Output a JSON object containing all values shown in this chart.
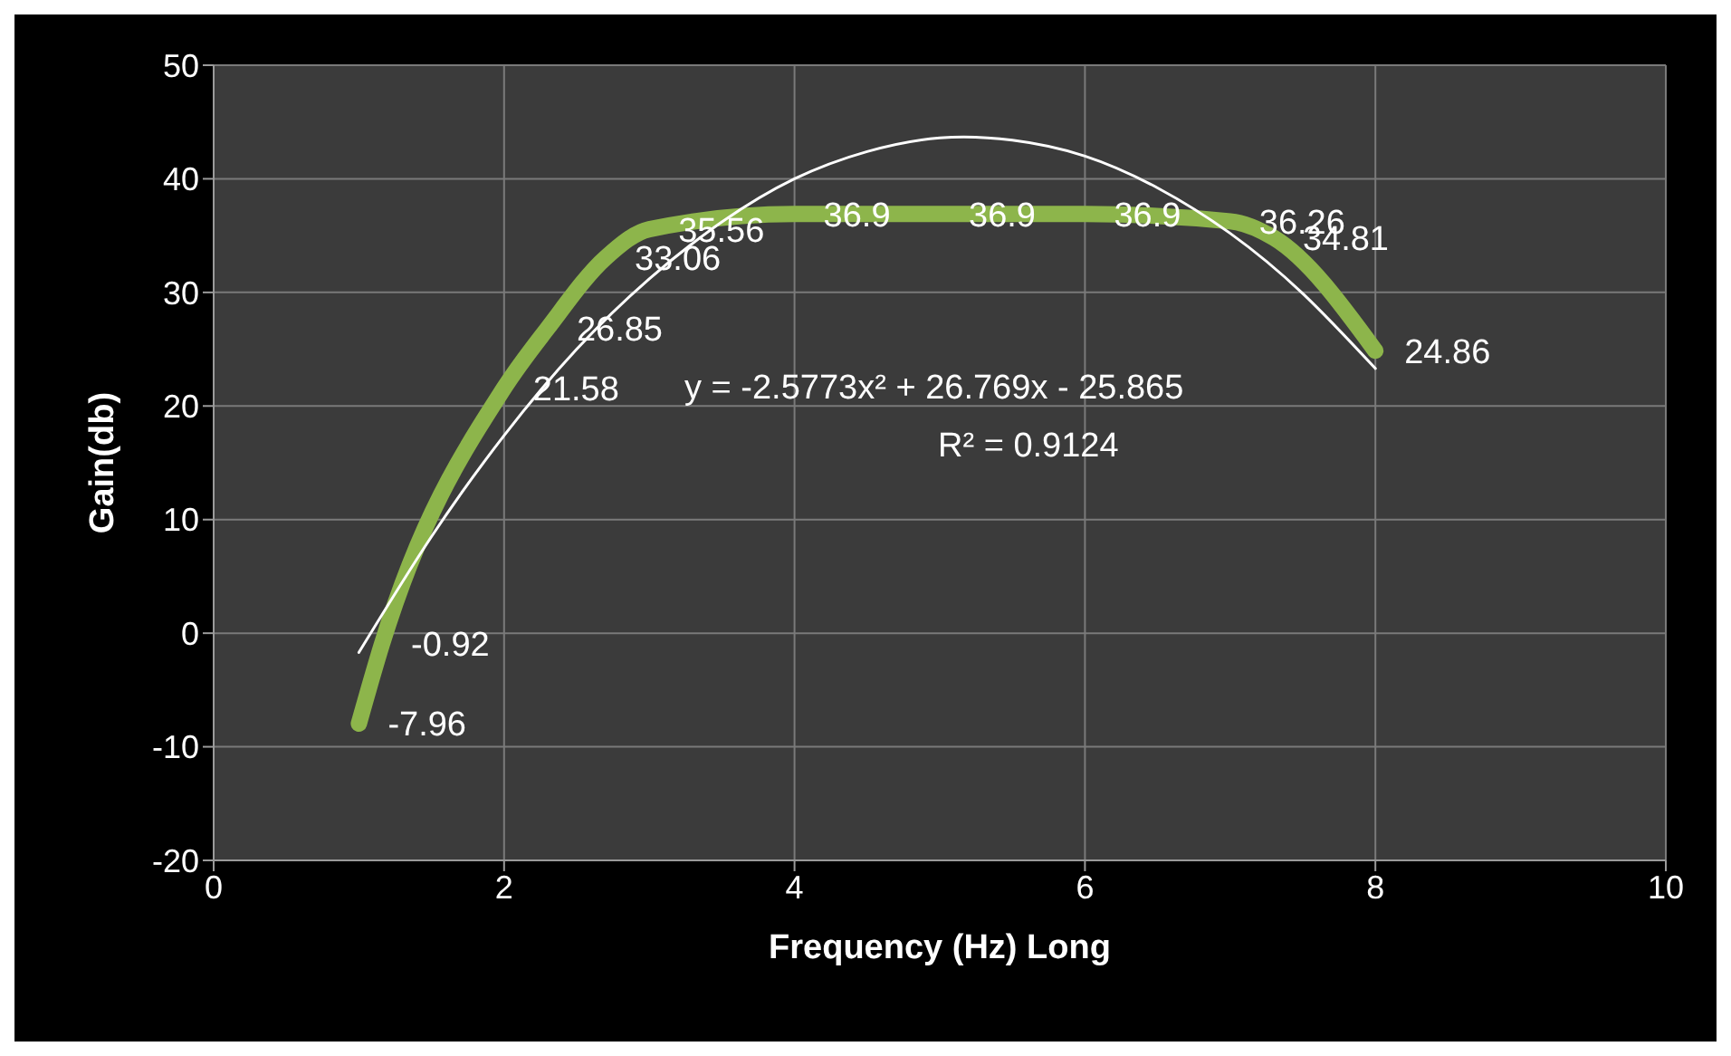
{
  "chart_data": {
    "type": "line",
    "xlabel": "Frequency (Hz) Long",
    "ylabel": "Gain(db)",
    "xlim": [
      0,
      10
    ],
    "xticks": [
      0,
      2,
      4,
      6,
      8,
      10
    ],
    "ylim": [
      -20,
      50
    ],
    "yticks": [
      -20,
      -10,
      0,
      10,
      20,
      30,
      40,
      50
    ],
    "grid": true,
    "legend": false,
    "marker": "none",
    "line_style": "solid",
    "annotations": [
      "y = -2.5773x² + 26.769x - 25.865",
      "R² = 0.9124"
    ],
    "series": [
      {
        "color": "#8db54b",
        "x": [
          1,
          1.16,
          2,
          2.3,
          2.7,
          3,
          4,
          5,
          6,
          7,
          7.3,
          8
        ],
        "values": [
          -7.96,
          -0.92,
          21.58,
          26.85,
          33.06,
          35.56,
          36.9,
          36.9,
          36.9,
          36.26,
          34.81,
          24.86
        ],
        "value_labels": [
          "-7.96",
          "-0.92",
          "21.58",
          "26.85",
          "33.06",
          "35.56",
          "36.9",
          "36.9",
          "36.9",
          "36.26",
          "34.81",
          "24.86"
        ]
      },
      {
        "type": "line",
        "color": "#ffffff",
        "x": [
          1,
          1.5,
          2,
          2.5,
          3,
          3.5,
          4,
          4.5,
          5,
          5.5,
          6,
          6.5,
          7,
          7.5,
          8
        ],
        "values": [
          -1.7,
          8.5,
          17.4,
          25,
          31.2,
          36.2,
          40,
          42.4,
          43.6,
          43.4,
          42,
          39.2,
          35.2,
          29.9,
          23.3
        ]
      }
    ]
  }
}
